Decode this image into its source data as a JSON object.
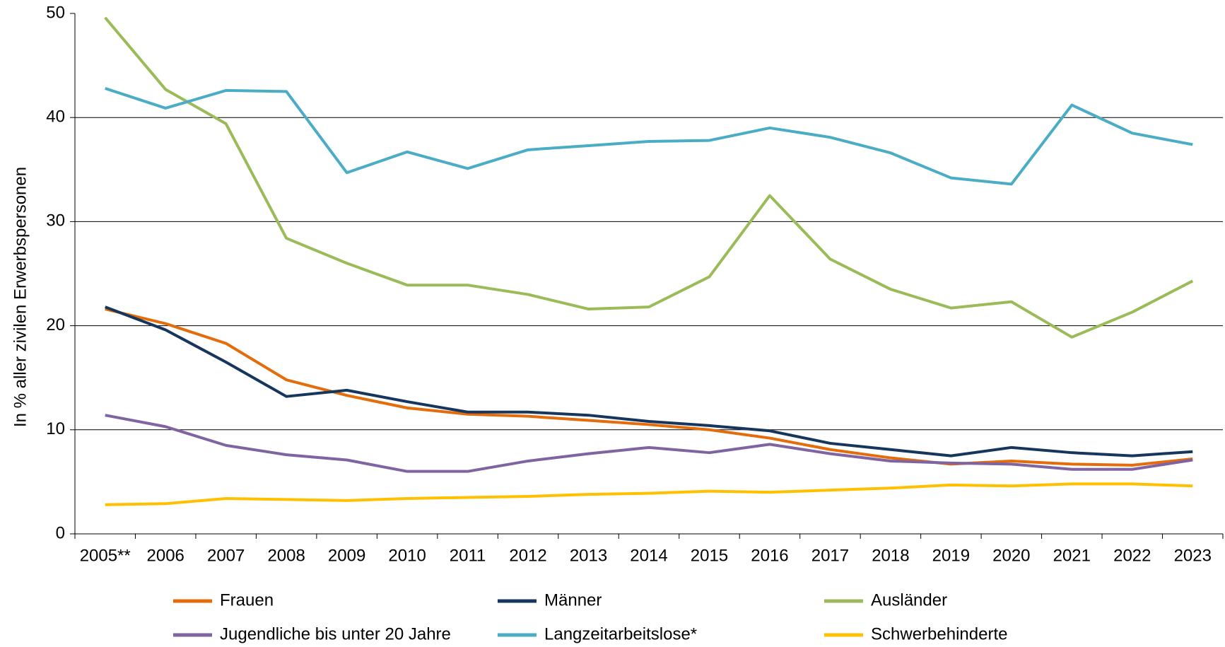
{
  "chart_data": {
    "type": "line",
    "y_label": "In % aller zivilen Erwerbspersonen",
    "categories": [
      "2005**",
      "2006",
      "2007",
      "2008",
      "2009",
      "2010",
      "2011",
      "2012",
      "2013",
      "2014",
      "2015",
      "2016",
      "2017",
      "2018",
      "2019",
      "2020",
      "2021",
      "2022",
      "2023"
    ],
    "series": [
      {
        "name": "Frauen",
        "color": "#e46c0a",
        "values": [
          21.6,
          20.2,
          18.3,
          14.8,
          13.3,
          12.1,
          11.5,
          11.3,
          10.9,
          10.5,
          10.0,
          9.2,
          8.1,
          7.3,
          6.7,
          7.0,
          6.7,
          6.6,
          7.2
        ]
      },
      {
        "name": "Männer",
        "color": "#17365d",
        "values": [
          21.8,
          19.6,
          16.5,
          13.2,
          13.8,
          12.7,
          11.7,
          11.7,
          11.4,
          10.8,
          10.4,
          9.9,
          8.7,
          8.1,
          7.5,
          8.3,
          7.8,
          7.5,
          7.9
        ]
      },
      {
        "name": "Ausländer",
        "color": "#9bbb59",
        "values": [
          49.6,
          42.7,
          39.4,
          28.4,
          26.0,
          23.9,
          23.9,
          23.0,
          21.6,
          21.8,
          24.7,
          32.5,
          26.4,
          23.5,
          21.7,
          22.3,
          18.9,
          21.3,
          24.3
        ]
      },
      {
        "name": "Jugendliche bis unter 20 Jahre",
        "color": "#8064a2",
        "values": [
          11.4,
          10.3,
          8.5,
          7.6,
          7.1,
          6.0,
          6.0,
          7.0,
          7.7,
          8.3,
          7.8,
          8.6,
          7.7,
          7.0,
          6.8,
          6.7,
          6.2,
          6.2,
          7.1
        ]
      },
      {
        "name": "Langzeitarbeitslose*",
        "color": "#4bacc6",
        "values": [
          42.8,
          40.9,
          42.6,
          42.5,
          34.7,
          36.7,
          35.1,
          36.9,
          37.3,
          37.7,
          37.8,
          39.0,
          38.1,
          36.6,
          34.2,
          33.6,
          41.2,
          38.5,
          37.4
        ]
      },
      {
        "name": "Schwerbehinderte",
        "color": "#ffc000",
        "values": [
          2.8,
          2.9,
          3.4,
          3.3,
          3.2,
          3.4,
          3.5,
          3.6,
          3.8,
          3.9,
          4.1,
          4.0,
          4.2,
          4.4,
          4.7,
          4.6,
          4.8,
          4.8,
          4.6
        ]
      }
    ],
    "ylim": [
      0,
      50
    ],
    "yticks": [
      0,
      10,
      20,
      30,
      40,
      50
    ],
    "grid": true,
    "legend": "bottom"
  }
}
